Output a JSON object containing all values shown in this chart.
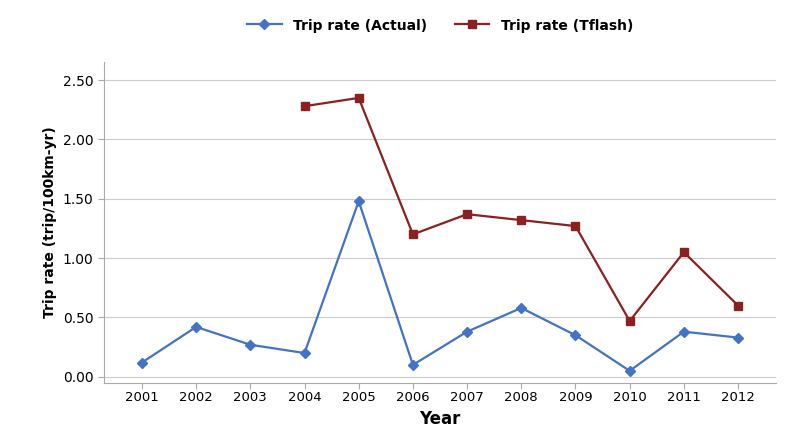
{
  "years": [
    2001,
    2002,
    2003,
    2004,
    2005,
    2006,
    2007,
    2008,
    2009,
    2010,
    2011,
    2012
  ],
  "actual": [
    0.12,
    0.42,
    0.27,
    0.2,
    1.48,
    0.1,
    0.38,
    0.58,
    0.35,
    0.05,
    0.38,
    0.33
  ],
  "tflash_years": [
    2004,
    2005,
    2006,
    2007,
    2008,
    2009,
    2010,
    2011,
    2012
  ],
  "tflash": [
    2.28,
    2.35,
    1.2,
    1.37,
    1.32,
    1.27,
    0.47,
    1.05,
    0.6
  ],
  "actual_color": "#4472C4",
  "tflash_color": "#8B2020",
  "xlabel": "Year",
  "ylabel": "Trip rate (trip/100km-yr)",
  "ylim": [
    -0.05,
    2.65
  ],
  "yticks": [
    0.0,
    0.5,
    1.0,
    1.5,
    2.0,
    2.5
  ],
  "legend_actual": "Trip rate (Actual)",
  "legend_tflash": "Trip rate (Tflash)"
}
